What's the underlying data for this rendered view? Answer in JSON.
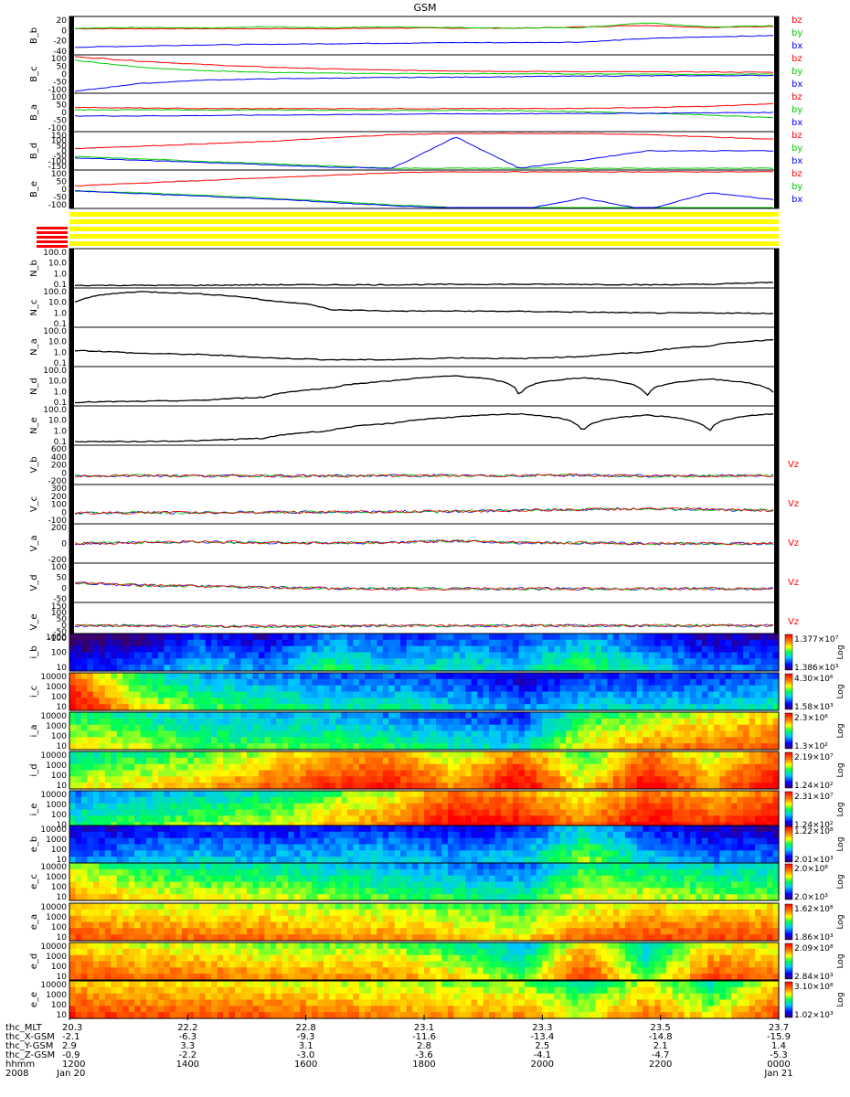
{
  "title": "GSM",
  "colors": {
    "bx": "#0000ff",
    "by": "#00cc00",
    "bz": "#ff0000"
  },
  "chart_data": [
    {
      "type": "line",
      "group": "magnetic_field",
      "panels": [
        {
          "ylabel": "B_b",
          "ticks": [
            "20",
            "0",
            "-20",
            "-40"
          ],
          "legend": [
            "bz",
            "by",
            "bx"
          ],
          "series": [
            {
              "name": "bz",
              "values": [
                2,
                2,
                2,
                2,
                2,
                3,
                3,
                3,
                5,
                8,
                4,
                6
              ]
            },
            {
              "name": "by",
              "values": [
                3,
                4,
                3,
                5,
                4,
                5,
                4,
                3,
                4,
                12,
                5,
                7
              ]
            },
            {
              "name": "bx",
              "values": [
                -30,
                -28,
                -26,
                -25,
                -24,
                -23,
                -22,
                -22,
                -21,
                -15,
                -12,
                -10
              ]
            }
          ]
        },
        {
          "ylabel": "B_c",
          "ticks": [
            "100",
            "50",
            "0",
            "-50",
            "-100"
          ],
          "legend": [
            "bz",
            "by",
            "bx"
          ],
          "series": [
            {
              "name": "bz",
              "values": [
                100,
                75,
                55,
                40,
                30,
                22,
                18,
                15,
                14,
                13,
                12,
                10
              ]
            },
            {
              "name": "by",
              "values": [
                80,
                40,
                20,
                10,
                5,
                3,
                2,
                2,
                1,
                0,
                -2,
                0
              ]
            },
            {
              "name": "bx",
              "values": [
                -100,
                -55,
                -35,
                -28,
                -24,
                -20,
                -18,
                -15,
                -12,
                -10,
                -9,
                -8
              ]
            }
          ]
        },
        {
          "ylabel": "B_a",
          "ticks": [
            "100",
            "50",
            "0",
            "-50",
            "-100"
          ],
          "legend": [
            "bz",
            "by",
            "bx"
          ],
          "series": [
            {
              "name": "bz",
              "values": [
                30,
                25,
                22,
                22,
                22,
                22,
                22,
                22,
                24,
                28,
                35,
                50
              ]
            },
            {
              "name": "by",
              "values": [
                15,
                15,
                14,
                15,
                13,
                12,
                12,
                10,
                5,
                -5,
                -15,
                -30
              ]
            },
            {
              "name": "bx",
              "values": [
                -20,
                -20,
                -18,
                -15,
                -13,
                -10,
                -8,
                -8,
                -5,
                -5,
                -2,
                0
              ]
            }
          ]
        },
        {
          "ylabel": "B_d",
          "ticks": [
            "150",
            "100",
            "50",
            "0",
            "-50",
            "-100",
            "-150"
          ],
          "legend": [
            "bz",
            "by",
            "bx"
          ],
          "series": [
            {
              "name": "bz",
              "values": [
                20,
                40,
                60,
                80,
                110,
                140,
                150,
                150,
                150,
                140,
                120,
                100
              ]
            },
            {
              "name": "by",
              "values": [
                -50,
                -70,
                -90,
                -110,
                -130,
                -150,
                -150,
                -150,
                -150,
                -150,
                -150,
                -150
              ]
            },
            {
              "name": "bx",
              "values": [
                -60,
                -80,
                -100,
                -120,
                -140,
                -150,
                120,
                -150,
                -80,
                0,
                0,
                0
              ]
            }
          ]
        },
        {
          "ylabel": "B_e",
          "ticks": [
            "100",
            "50",
            "0",
            "-50",
            "-100"
          ],
          "legend": [
            "bz",
            "by",
            "bx"
          ],
          "series": [
            {
              "name": "bz",
              "values": [
                20,
                35,
                50,
                65,
                80,
                95,
                100,
                100,
                100,
                100,
                100,
                100
              ]
            },
            {
              "name": "by",
              "values": [
                -10,
                -20,
                -35,
                -50,
                -70,
                -90,
                -105,
                -120,
                -120,
                -120,
                -120,
                -120
              ]
            },
            {
              "name": "bx",
              "values": [
                -10,
                -25,
                -40,
                -55,
                -75,
                -95,
                -110,
                -120,
                -50,
                -120,
                -20,
                -60
              ]
            }
          ]
        }
      ]
    },
    {
      "type": "line",
      "group": "density",
      "yscale": "log",
      "ylim": [
        0.1,
        100
      ],
      "panels": [
        {
          "ylabel": "N_b",
          "ticks": [
            "100.0",
            "10.0",
            "1.0",
            "0.1"
          ],
          "series": [
            {
              "name": "",
              "values": [
                0.08,
                0.08,
                0.08,
                0.09,
                0.09,
                0.09,
                0.1,
                0.1,
                0.1,
                0.09,
                0.1,
                0.15
              ]
            }
          ]
        },
        {
          "ylabel": "N_c",
          "ticks": [
            "100.0",
            "10.0",
            "1.0",
            "0.1"
          ],
          "series": [
            {
              "name": "",
              "values": [
                10,
                100,
                60,
                15,
                2,
                1.5,
                1.5,
                1.4,
                1.2,
                1,
                1,
                0.9
              ]
            }
          ]
        },
        {
          "ylabel": "N_a",
          "ticks": [
            "100.0",
            "10.0",
            "1.0",
            "0.1"
          ],
          "series": [
            {
              "name": "",
              "values": [
                1.5,
                0.8,
                0.6,
                0.3,
                0.2,
                0.2,
                0.3,
                0.25,
                0.4,
                1,
                4,
                15
              ]
            }
          ]
        },
        {
          "ylabel": "N_d",
          "ticks": [
            "100.0",
            "10.0",
            "1.0",
            "0.1"
          ],
          "series": [
            {
              "name": "",
              "values": [
                0.1,
                0.12,
                0.15,
                0.3,
                2,
                10,
                30,
                0.2,
                20,
                0.2,
                15,
                0.8
              ]
            }
          ]
        },
        {
          "ylabel": "N_e",
          "ticks": [
            "100.0",
            "10.0",
            "1.0",
            "0.1"
          ],
          "series": [
            {
              "name": "",
              "values": [
                0.1,
                0.1,
                0.12,
                0.2,
                1,
                5,
                20,
                40,
                0.5,
                30,
                0.7,
                40
              ]
            }
          ]
        }
      ]
    },
    {
      "type": "line",
      "group": "velocity",
      "panels": [
        {
          "ylabel": "V_b",
          "ticks": [
            "600",
            "400",
            "200",
            "0",
            "-200"
          ],
          "legend": [
            "Vz"
          ],
          "series": [
            {
              "name": "Vz",
              "values": [
                -50,
                -40,
                -50,
                -45,
                -50,
                -40,
                -45,
                -40,
                -30,
                -50,
                -45,
                -40
              ]
            }
          ]
        },
        {
          "ylabel": "V_c",
          "ticks": [
            "300",
            "200",
            "100",
            "0",
            "-100"
          ],
          "legend": [
            "Vz"
          ],
          "series": [
            {
              "name": "Vz",
              "values": [
                0,
                5,
                5,
                10,
                10,
                15,
                20,
                30,
                40,
                50,
                40,
                30
              ]
            }
          ]
        },
        {
          "ylabel": "V_a",
          "ticks": [
            "200",
            "0",
            "-200"
          ],
          "legend": [
            "Vz"
          ],
          "series": [
            {
              "name": "Vz",
              "values": [
                0,
                10,
                20,
                10,
                5,
                10,
                30,
                10,
                5,
                0,
                0,
                0
              ]
            }
          ]
        },
        {
          "ylabel": "V_d",
          "ticks": [
            "100",
            "50",
            "0",
            "-50"
          ],
          "legend": [
            "Vz"
          ],
          "series": [
            {
              "name": "Vz",
              "values": [
                25,
                15,
                10,
                5,
                2,
                0,
                0,
                0,
                0,
                0,
                0,
                0
              ]
            }
          ]
        },
        {
          "ylabel": "V_e",
          "ticks": [
            "150",
            "100",
            "50",
            "0",
            "-50",
            "-100"
          ],
          "legend": [
            "Vz"
          ],
          "series": [
            {
              "name": "Vz",
              "values": [
                0,
                0,
                -5,
                -5,
                -5,
                0,
                0,
                0,
                0,
                0,
                0,
                0
              ]
            }
          ]
        }
      ]
    },
    {
      "type": "heatmap",
      "group": "spectrograms",
      "colorscale": "rainbow",
      "panels": [
        {
          "ylabel": "i_b",
          "ticks": [
            "1000",
            "100",
            "10"
          ],
          "cbar": [
            "1.377×10⁷",
            "1.386×10³"
          ],
          "cbar_label": "Log",
          "intensity": [
            0.1,
            0.15,
            0.3,
            0.2,
            0.4,
            0.3,
            0.35,
            0.3,
            0.45,
            0.3,
            0.2,
            0.2
          ]
        },
        {
          "ylabel": "i_c",
          "ticks": [
            "10000",
            "1000",
            "100",
            "10"
          ],
          "cbar": [
            "4.30×10⁶",
            "1.58×10³"
          ],
          "cbar_label": "Log",
          "intensity": [
            0.95,
            0.6,
            0.45,
            0.4,
            0.35,
            0.35,
            0.3,
            0.2,
            0.3,
            0.3,
            0.3,
            0.35
          ]
        },
        {
          "ylabel": "i_a",
          "ticks": [
            "10000",
            "1000",
            "100",
            "10"
          ],
          "cbar": [
            "2.3×10⁶",
            "1.3×10²"
          ],
          "cbar_label": "Log",
          "intensity": [
            0.6,
            0.55,
            0.45,
            0.45,
            0.45,
            0.4,
            0.35,
            0.3,
            0.6,
            0.7,
            0.75,
            0.8
          ]
        },
        {
          "ylabel": "i_d",
          "ticks": [
            "10000",
            "1000",
            "100",
            "10"
          ],
          "cbar": [
            "2.19×10⁷",
            "1.24×10²"
          ],
          "cbar_label": "Log",
          "intensity": [
            0.55,
            0.6,
            0.65,
            0.75,
            0.85,
            0.9,
            0.7,
            0.95,
            0.6,
            0.95,
            0.7,
            0.95
          ]
        },
        {
          "ylabel": "i_e",
          "ticks": [
            "10000",
            "1000",
            "100",
            "10"
          ],
          "cbar": [
            "2.31×10⁷",
            "1.24×10²"
          ],
          "cbar_label": "Log",
          "intensity": [
            0.4,
            0.45,
            0.5,
            0.55,
            0.65,
            0.75,
            0.95,
            0.9,
            0.75,
            0.95,
            0.85,
            0.95
          ]
        },
        {
          "ylabel": "e_b",
          "ticks": [
            "10000",
            "1000",
            "100",
            "10"
          ],
          "cbar": [
            "1.22×10⁸",
            "2.01×10³"
          ],
          "cbar_label": "Log",
          "intensity": [
            0.2,
            0.25,
            0.3,
            0.25,
            0.3,
            0.3,
            0.25,
            0.3,
            0.5,
            0.3,
            0.2,
            0.2
          ]
        },
        {
          "ylabel": "e_c",
          "ticks": [
            "10000",
            "1000",
            "100",
            "10"
          ],
          "cbar": [
            "2.0×10⁸",
            "2.0×10³"
          ],
          "cbar_label": "Log",
          "intensity": [
            0.7,
            0.6,
            0.55,
            0.55,
            0.5,
            0.45,
            0.4,
            0.35,
            0.6,
            0.55,
            0.5,
            0.5
          ]
        },
        {
          "ylabel": "e_a",
          "ticks": [
            "10000",
            "1000",
            "100",
            "10"
          ],
          "cbar": [
            "1.62×10⁸",
            "1.86×10³"
          ],
          "cbar_label": "Log",
          "intensity": [
            0.8,
            0.75,
            0.75,
            0.75,
            0.7,
            0.7,
            0.65,
            0.6,
            0.75,
            0.8,
            0.8,
            0.8
          ]
        },
        {
          "ylabel": "e_d",
          "ticks": [
            "10000",
            "1000",
            "100",
            "10"
          ],
          "cbar": [
            "2.09×10⁸",
            "2.84×10³"
          ],
          "cbar_label": "Log",
          "intensity": [
            0.8,
            0.75,
            0.75,
            0.7,
            0.7,
            0.7,
            0.6,
            0.45,
            0.85,
            0.45,
            0.8,
            0.75
          ]
        },
        {
          "ylabel": "e_e",
          "ticks": [
            "10000",
            "1000",
            "100",
            "10"
          ],
          "cbar": [
            "3.10×10⁸",
            "1.02×10³"
          ],
          "cbar_label": "Log",
          "intensity": [
            0.85,
            0.8,
            0.8,
            0.78,
            0.75,
            0.72,
            0.7,
            0.7,
            0.55,
            0.75,
            0.55,
            0.8
          ]
        }
      ]
    }
  ],
  "time_axis": {
    "labels": [
      "thc_MLT",
      "thc_X-GSM",
      "thc_Y-GSM",
      "thc_Z-GSM",
      "hhmm",
      "2008"
    ],
    "first_values": [
      "20.3",
      "-2.1",
      "2.9",
      "-0.9",
      "1200",
      "Jan 20"
    ],
    "columns": [
      [
        "22.2",
        "-6.3",
        "3.3",
        "-2.2",
        "1400"
      ],
      [
        "22.8",
        "-9.3",
        "3.1",
        "-3.0",
        "1600"
      ],
      [
        "23.1",
        "-11.6",
        "2.8",
        "-3.6",
        "1800"
      ],
      [
        "23.3",
        "-13.4",
        "2.5",
        "-4.1",
        "2000"
      ],
      [
        "23.5",
        "-14.8",
        "2.1",
        "-4.7",
        "2200"
      ],
      [
        "23.7",
        "-15.9",
        "1.4",
        "-5.3",
        "0000",
        "Jan 21"
      ]
    ]
  }
}
